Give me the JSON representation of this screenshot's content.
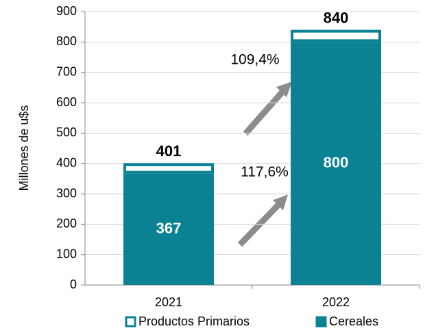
{
  "chart_data": {
    "type": "bar",
    "stacked": true,
    "ylabel": "Millones de u$s",
    "categories": [
      "2021",
      "2022"
    ],
    "series": [
      {
        "name": "Cereales",
        "color": "#0a8294",
        "values": [
          367,
          800
        ]
      },
      {
        "name": "Productos Primarios",
        "color": "#ffffff",
        "values": [
          34,
          40
        ]
      }
    ],
    "totals": [
      401,
      840
    ],
    "annotations": [
      "117,6%",
      "109,4%"
    ],
    "ylim": [
      0,
      900
    ],
    "yticks": [
      0,
      100,
      200,
      300,
      400,
      500,
      600,
      700,
      800,
      900
    ],
    "grid": true
  }
}
